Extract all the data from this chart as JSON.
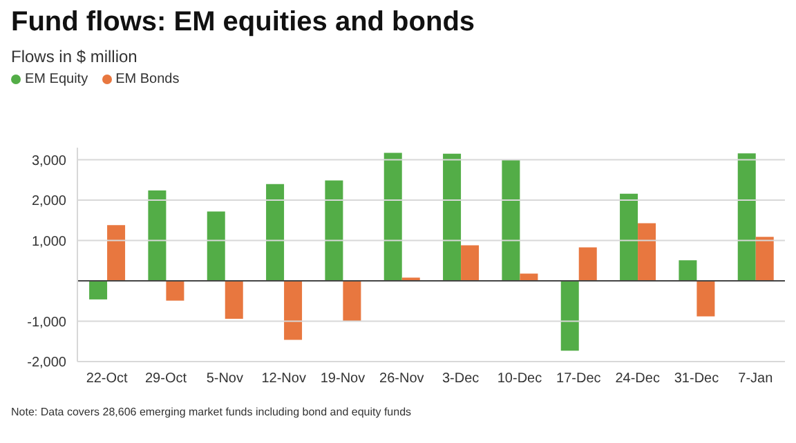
{
  "chart_data": {
    "type": "bar",
    "title": "Fund flows: EM equities and bonds",
    "subtitle": "Flows in $ million",
    "categories": [
      "22-Oct",
      "29-Oct",
      "5-Nov",
      "12-Nov",
      "19-Nov",
      "26-Nov",
      "3-Dec",
      "10-Dec",
      "17-Dec",
      "24-Dec",
      "31-Dec",
      "7-Jan"
    ],
    "series": [
      {
        "name": "EM Equity",
        "color": "#53ad47",
        "values": [
          -460,
          2240,
          1720,
          2400,
          2490,
          3170,
          3150,
          3000,
          -1730,
          2160,
          510,
          3160
        ]
      },
      {
        "name": "EM Bonds",
        "color": "#e8773f",
        "values": [
          1380,
          -490,
          -940,
          -1460,
          -1010,
          80,
          880,
          180,
          830,
          1430,
          -880,
          1090
        ]
      }
    ],
    "ylim": [
      -2000,
      3300
    ],
    "yticks": [
      {
        "value": -2000,
        "label": "-2,000"
      },
      {
        "value": -1000,
        "label": "-1,000"
      },
      {
        "value": 0,
        "label": null
      },
      {
        "value": 1000,
        "label": "1,000"
      },
      {
        "value": 2000,
        "label": "2,000"
      },
      {
        "value": 3000,
        "label": "3,000"
      }
    ],
    "grid": "y",
    "legend": "top left",
    "annotations": [
      "Note: Data covers 28,606 emerging market funds including bond and equity funds"
    ]
  }
}
